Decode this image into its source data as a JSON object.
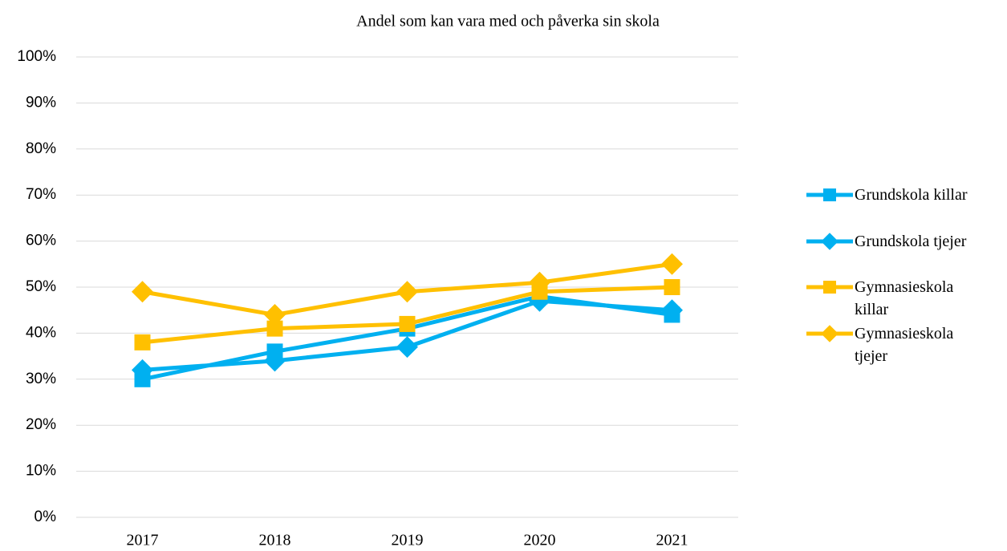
{
  "chart_data": {
    "type": "line",
    "title": "Andel som kan vara med och påverka sin skola",
    "categories": [
      "2017",
      "2018",
      "2019",
      "2020",
      "2021"
    ],
    "series": [
      {
        "name": "Grundskola killar",
        "color": "#00b0f0",
        "marker": "square",
        "values": [
          30,
          36,
          41,
          48,
          44
        ]
      },
      {
        "name": "Grundskola tjejer",
        "color": "#00b0f0",
        "marker": "diamond",
        "values": [
          32,
          34,
          37,
          47,
          45
        ]
      },
      {
        "name": "Gymnasieskola killar",
        "color": "#ffc000",
        "marker": "square",
        "values": [
          38,
          41,
          42,
          49,
          50
        ]
      },
      {
        "name": "Gymnasieskola tjejer",
        "color": "#ffc000",
        "marker": "diamond",
        "values": [
          49,
          44,
          49,
          51,
          55
        ]
      }
    ],
    "ylim": [
      0,
      100
    ],
    "yticks": [
      {
        "value": 0,
        "label": "0%"
      },
      {
        "value": 10,
        "label": "10%"
      },
      {
        "value": 20,
        "label": "20%"
      },
      {
        "value": 30,
        "label": "30%"
      },
      {
        "value": 40,
        "label": "40%"
      },
      {
        "value": 50,
        "label": "50%"
      },
      {
        "value": 60,
        "label": "60%"
      },
      {
        "value": 70,
        "label": "70%"
      },
      {
        "value": 80,
        "label": "80%"
      },
      {
        "value": 90,
        "label": "90%"
      },
      {
        "value": 100,
        "label": "100%"
      }
    ],
    "grid": true,
    "legend": "right"
  }
}
